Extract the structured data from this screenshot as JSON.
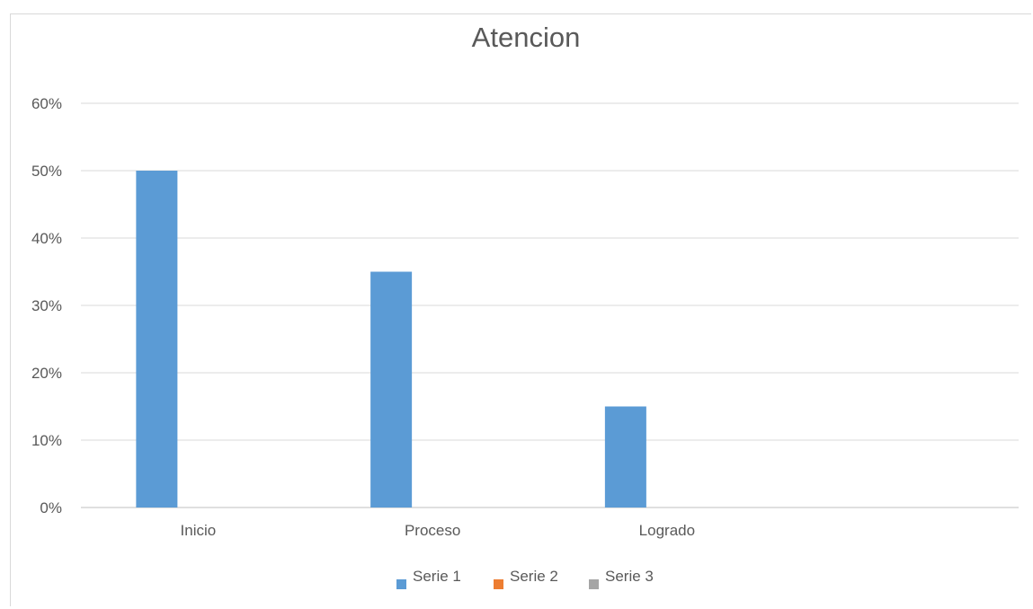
{
  "chart_data": {
    "type": "bar",
    "title": "Atencion",
    "categories": [
      "Inicio",
      "Proceso",
      "Logrado",
      ""
    ],
    "series": [
      {
        "name": "Serie 1",
        "color": "#5b9bd5",
        "values": [
          50,
          35,
          15,
          null
        ]
      },
      {
        "name": "Serie 2",
        "color": "#ed7d31",
        "values": [
          null,
          null,
          null,
          null
        ]
      },
      {
        "name": "Serie 3",
        "color": "#a5a5a5",
        "values": [
          null,
          null,
          null,
          null
        ]
      }
    ],
    "ylim": [
      0,
      60
    ],
    "yticks": [
      0,
      10,
      20,
      30,
      40,
      50,
      60
    ],
    "ytick_labels": [
      "0%",
      "10%",
      "20%",
      "30%",
      "40%",
      "50%",
      "60%"
    ],
    "grid": true,
    "legend": "bottom"
  }
}
